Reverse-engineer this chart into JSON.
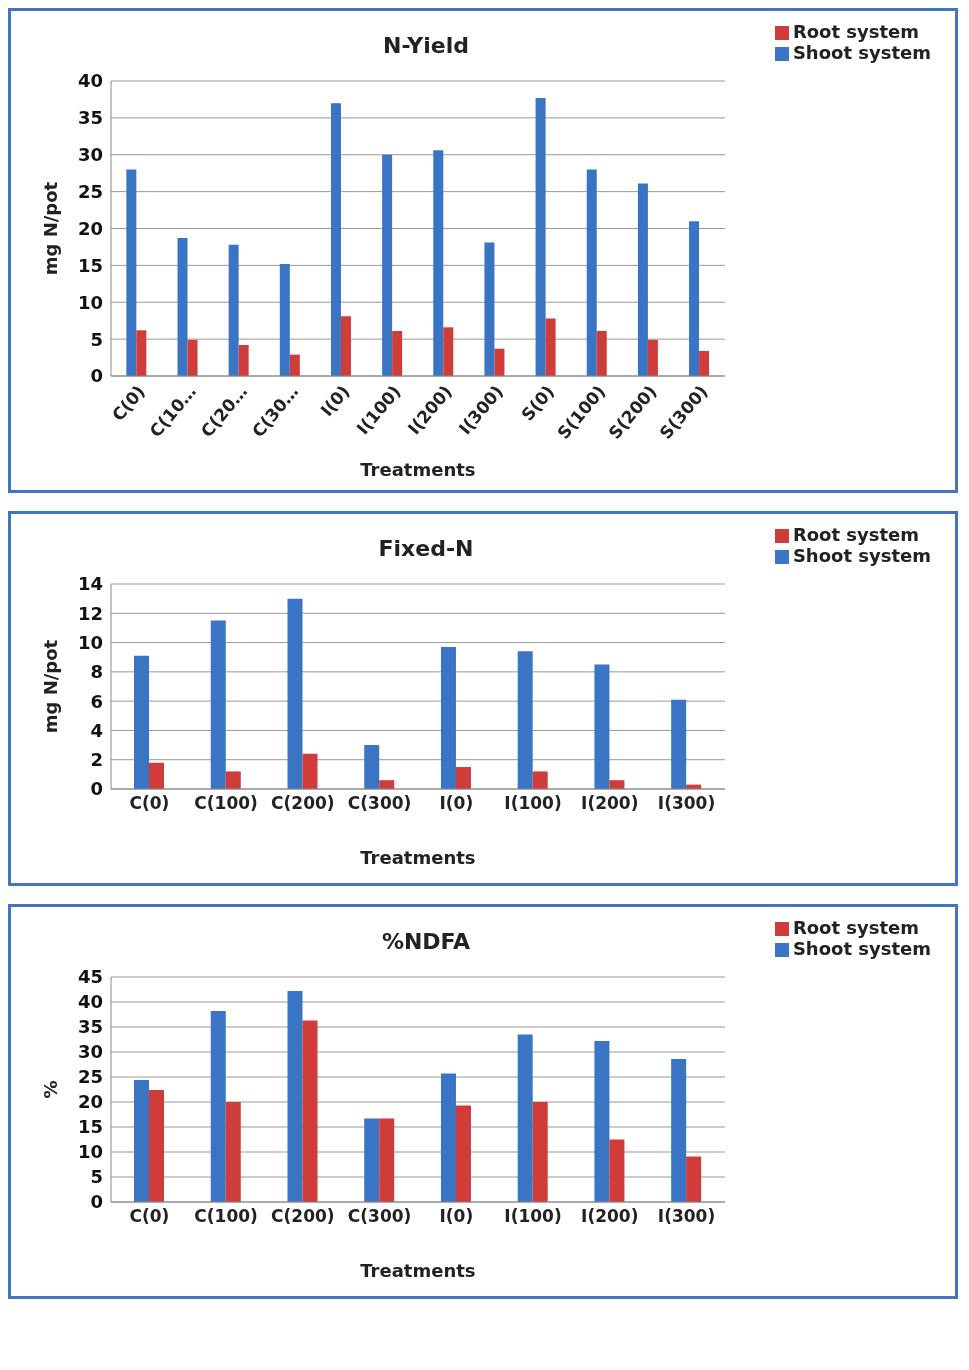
{
  "chart_data": [
    {
      "type": "bar",
      "title": "N-Yield",
      "xlabel": "Treatments",
      "ylabel": "mg N/pot",
      "categories": [
        "C(0)",
        "C(10…",
        "C(20…",
        "C(30…",
        "I(0)",
        "I(100)",
        "I(200)",
        "I(300)",
        "S(0)",
        "S(100)",
        "S(200)",
        "S(300)"
      ],
      "series": [
        {
          "name": "Shoot system",
          "color": "#3a74c4",
          "values": [
            28,
            18.7,
            17.8,
            15.2,
            37,
            30,
            30.6,
            18.1,
            37.7,
            28,
            26.1,
            21
          ]
        },
        {
          "name": "Root system",
          "color": "#d03c3a",
          "values": [
            6.2,
            4.9,
            4.2,
            2.9,
            8.1,
            6.1,
            6.6,
            3.7,
            7.8,
            6.1,
            4.9,
            3.4
          ]
        }
      ],
      "ylim": [
        0,
        40
      ],
      "yticks": [
        0,
        5,
        10,
        15,
        20,
        25,
        30,
        35,
        40
      ],
      "grid": "y",
      "legend": "top right"
    },
    {
      "type": "bar",
      "title": "Fixed-N",
      "xlabel": "Treatments",
      "ylabel": "mg N/pot",
      "categories": [
        "C(0)",
        "C(100)",
        "C(200)",
        "C(300)",
        "I(0)",
        "I(100)",
        "I(200)",
        "I(300)"
      ],
      "series": [
        {
          "name": "Shoot system",
          "color": "#3a74c4",
          "values": [
            9.1,
            11.5,
            13,
            3,
            9.7,
            9.4,
            8.5,
            6.1
          ]
        },
        {
          "name": "Root system",
          "color": "#d03c3a",
          "values": [
            1.8,
            1.2,
            2.4,
            0.6,
            1.5,
            1.2,
            0.6,
            0.3
          ]
        }
      ],
      "ylim": [
        0,
        14
      ],
      "yticks": [
        0,
        2,
        4,
        6,
        8,
        10,
        12,
        14
      ],
      "grid": "y",
      "legend": "top right"
    },
    {
      "type": "bar",
      "title": "%NDFA",
      "xlabel": "Treatments",
      "ylabel": "%",
      "categories": [
        "C(0)",
        "C(100)",
        "C(200)",
        "C(300)",
        "I(0)",
        "I(100)",
        "I(200)",
        "I(300)"
      ],
      "series": [
        {
          "name": "Shoot system",
          "color": "#3a74c4",
          "values": [
            24.4,
            38.2,
            42.2,
            16.7,
            25.7,
            33.5,
            32.2,
            28.6
          ]
        },
        {
          "name": "Root system",
          "color": "#d03c3a",
          "values": [
            22.4,
            20,
            36.3,
            16.7,
            19.3,
            20,
            12.5,
            9.1
          ]
        }
      ],
      "ylim": [
        0,
        45
      ],
      "yticks": [
        0,
        5,
        10,
        15,
        20,
        25,
        30,
        35,
        40,
        45
      ],
      "grid": "y",
      "legend": "top right"
    }
  ]
}
